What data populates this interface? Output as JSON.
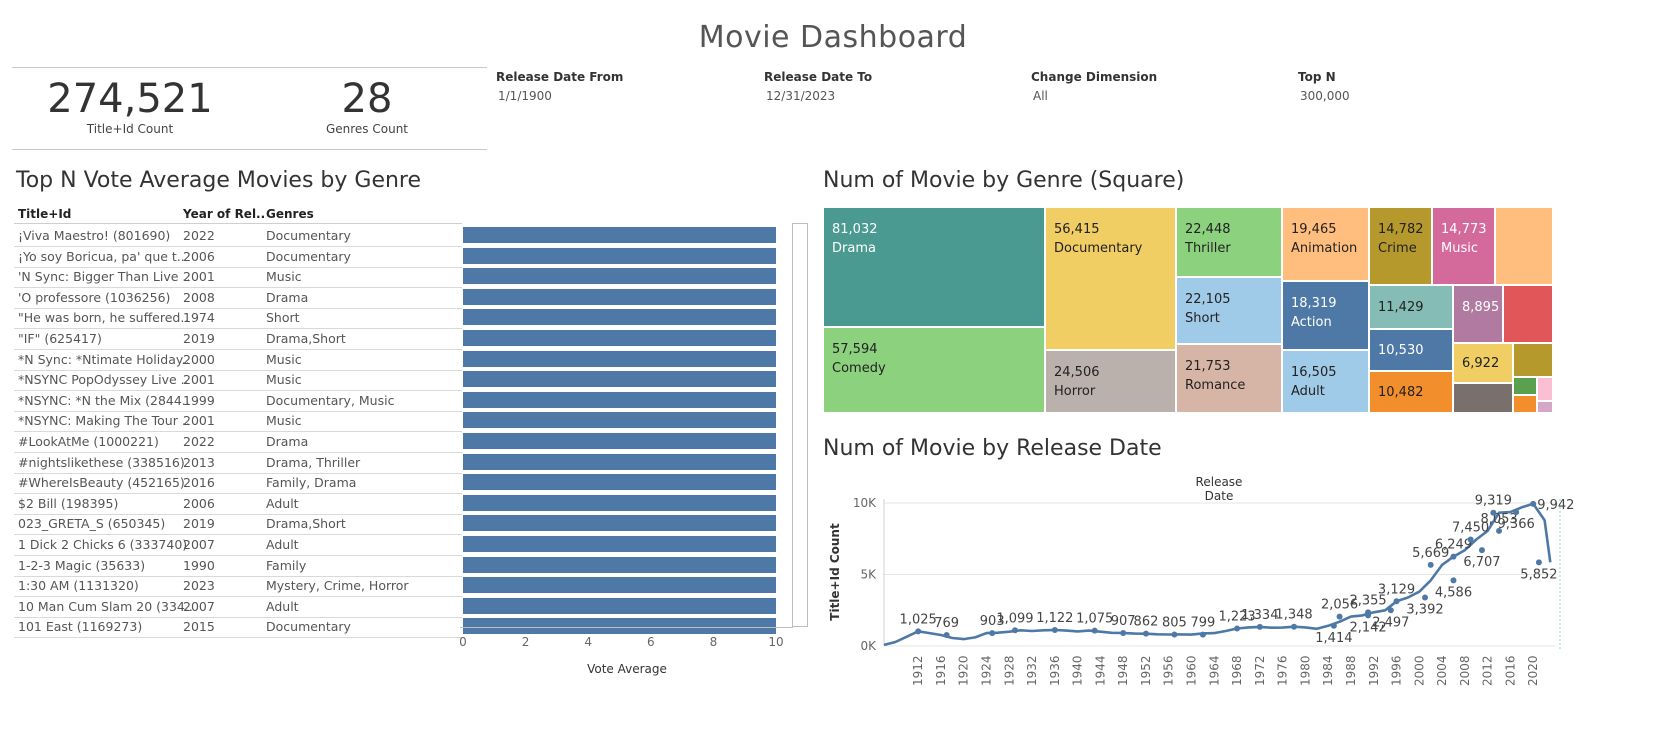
{
  "page": {
    "title": "Movie Dashboard"
  },
  "kpis": [
    {
      "value": "274,521",
      "label": "Title+Id Count"
    },
    {
      "value": "28",
      "label": "Genres Count"
    }
  ],
  "filters": [
    {
      "label": "Release Date From",
      "value": "1/1/1900"
    },
    {
      "label": "Release Date To",
      "value": "12/31/2023"
    },
    {
      "label": "Change Dimension",
      "value": "All"
    },
    {
      "label": "Top N",
      "value": "300,000"
    }
  ],
  "colors": {
    "bar": "#4e79a7",
    "line": "#4e79a7"
  },
  "chart_data": [
    {
      "type": "bar",
      "title": "Top N Vote Average Movies by Genre",
      "columns": [
        "Title+Id",
        "Year of Rel..",
        "Genres"
      ],
      "xlabel": "Vote Average",
      "xlim": [
        0,
        10
      ],
      "xticks": [
        "0",
        "2",
        "4",
        "6",
        "8",
        "10"
      ],
      "rows": [
        {
          "title": "¡Viva Maestro! (801690)",
          "year": "2022",
          "genres": "Documentary",
          "value": 10
        },
        {
          "title": "¡Yo soy Boricua, pa' que t..",
          "year": "2006",
          "genres": "Documentary",
          "value": 10
        },
        {
          "title": "'N Sync: Bigger Than Live ..",
          "year": "2001",
          "genres": "Music",
          "value": 10
        },
        {
          "title": "'O professore (1036256)",
          "year": "2008",
          "genres": "Drama",
          "value": 10
        },
        {
          "title": "\"He was born, he suffered..",
          "year": "1974",
          "genres": "Short",
          "value": 10
        },
        {
          "title": "\"IF\" (625417)",
          "year": "2019",
          "genres": "Drama,Short",
          "value": 10
        },
        {
          "title": "*N Sync: *Ntimate Holiday..",
          "year": "2000",
          "genres": "Music",
          "value": 10
        },
        {
          "title": "*NSYNC PopOdyssey Live ..",
          "year": "2001",
          "genres": "Music",
          "value": 10
        },
        {
          "title": "*NSYNC: *N the Mix (2844..",
          "year": "1999",
          "genres": "Documentary, Music",
          "value": 10
        },
        {
          "title": "*NSYNC: Making The Tour ..",
          "year": "2001",
          "genres": "Music",
          "value": 10
        },
        {
          "title": "#LookAtMe (1000221)",
          "year": "2022",
          "genres": "Drama",
          "value": 10
        },
        {
          "title": "#nightslikethese (338516)",
          "year": "2013",
          "genres": "Drama, Thriller",
          "value": 10
        },
        {
          "title": "#WhereIsBeauty (452165)",
          "year": "2016",
          "genres": "Family, Drama",
          "value": 10
        },
        {
          "title": "$2 Bill (198395)",
          "year": "2006",
          "genres": "Adult",
          "value": 10
        },
        {
          "title": "023_GRETA_S (650345)",
          "year": "2019",
          "genres": "Drama,Short",
          "value": 10
        },
        {
          "title": "1 Dick 2 Chicks 6 (333740)",
          "year": "2007",
          "genres": "Adult",
          "value": 10
        },
        {
          "title": "1-2-3 Magic (35633)",
          "year": "1990",
          "genres": "Family",
          "value": 10
        },
        {
          "title": "1:30 AM (1131320)",
          "year": "2023",
          "genres": "Mystery, Crime, Horror",
          "value": 10
        },
        {
          "title": "10 Man Cum Slam 20 (334..",
          "year": "2007",
          "genres": "Adult",
          "value": 10
        },
        {
          "title": "101 East (1169273)",
          "year": "2015",
          "genres": "Documentary",
          "value": 10
        }
      ]
    },
    {
      "type": "heatmap",
      "title": "Num of Movie by Genre (Square)",
      "items": [
        {
          "genre": "Drama",
          "value": "81,032",
          "color": "#4a9a91",
          "text": "#ffffff"
        },
        {
          "genre": "Comedy",
          "value": "57,594",
          "color": "#8cd17d",
          "text": "#222222"
        },
        {
          "genre": "Documentary",
          "value": "56,415",
          "color": "#f1ce63",
          "text": "#222222"
        },
        {
          "genre": "Horror",
          "value": "24,506",
          "color": "#bab0ac",
          "text": "#222222"
        },
        {
          "genre": "Thriller",
          "value": "22,448",
          "color": "#8cd17d",
          "text": "#222222"
        },
        {
          "genre": "Short",
          "value": "22,105",
          "color": "#a0cbe8",
          "text": "#222222"
        },
        {
          "genre": "Romance",
          "value": "21,753",
          "color": "#d7b5a6",
          "text": "#222222"
        },
        {
          "genre": "Animation",
          "value": "19,465",
          "color": "#ffbe7d",
          "text": "#222222"
        },
        {
          "genre": "Action",
          "value": "18,319",
          "color": "#4e79a7",
          "text": "#ffffff"
        },
        {
          "genre": "Adult",
          "value": "16,505",
          "color": "#a0cbe8",
          "text": "#222222"
        },
        {
          "genre": "Crime",
          "value": "14,782",
          "color": "#b6992d",
          "text": "#222222"
        },
        {
          "genre": "Music",
          "value": "14,773",
          "color": "#d4699c",
          "text": "#ffffff"
        },
        {
          "genre": "",
          "value": "",
          "color": "#ffbe7d",
          "text": "#222222"
        },
        {
          "genre": "",
          "value": "11,429",
          "color": "#86bcb6",
          "text": "#222222"
        },
        {
          "genre": "",
          "value": "8,895",
          "color": "#b07aa1",
          "text": "#ffffff"
        },
        {
          "genre": "",
          "value": "",
          "color": "#e15759",
          "text": "#222222"
        },
        {
          "genre": "",
          "value": "10,530",
          "color": "#4e79a7",
          "text": "#ffffff"
        },
        {
          "genre": "",
          "value": "6,922",
          "color": "#f1ce63",
          "text": "#222222"
        },
        {
          "genre": "",
          "value": "",
          "color": "#b6992d",
          "text": "#222222"
        },
        {
          "genre": "",
          "value": "10,482",
          "color": "#f28e2b",
          "text": "#222222"
        },
        {
          "genre": "",
          "value": "",
          "color": "#79706e",
          "text": "#222222"
        },
        {
          "genre": "",
          "value": "",
          "color": "#59a14f",
          "text": "#222222"
        },
        {
          "genre": "",
          "value": "",
          "color": "#fabfd2",
          "text": "#222222"
        },
        {
          "genre": "",
          "value": "",
          "color": "#f28e2b",
          "text": "#222222"
        },
        {
          "genre": "",
          "value": "",
          "color": "#d4a6c8",
          "text": "#222222"
        }
      ]
    },
    {
      "type": "line",
      "title": "Num of Movie by Release Date",
      "header": "Release Date",
      "ylabel": "Title+Id Count",
      "ylim": [
        0,
        10000
      ],
      "yticks": [
        {
          "v": 0,
          "label": "0K"
        },
        {
          "v": 5000,
          "label": "5K"
        },
        {
          "v": 10000,
          "label": "10K"
        }
      ],
      "xlim": [
        1906,
        2024
      ],
      "xticks": [
        "1912",
        "1916",
        "1920",
        "1924",
        "1928",
        "1932",
        "1936",
        "1940",
        "1944",
        "1948",
        "1952",
        "1956",
        "1960",
        "1964",
        "1968",
        "1972",
        "1976",
        "1980",
        "1984",
        "1988",
        "1992",
        "1996",
        "2000",
        "2004",
        "2008",
        "2012",
        "2016",
        "2020"
      ],
      "x": [
        1906,
        1908,
        1910,
        1912,
        1914,
        1916,
        1918,
        1920,
        1922,
        1924,
        1926,
        1928,
        1930,
        1932,
        1934,
        1936,
        1938,
        1940,
        1942,
        1944,
        1946,
        1948,
        1950,
        1952,
        1954,
        1956,
        1958,
        1960,
        1962,
        1964,
        1966,
        1968,
        1970,
        1972,
        1974,
        1976,
        1978,
        1980,
        1982,
        1984,
        1986,
        1988,
        1990,
        1992,
        1994,
        1996,
        1998,
        2000,
        2002,
        2004,
        2006,
        2008,
        2010,
        2012,
        2014,
        2016,
        2018,
        2020,
        2022,
        2023
      ],
      "values": [
        80,
        280,
        650,
        1025,
        900,
        769,
        560,
        480,
        600,
        903,
        930,
        1000,
        1099,
        1050,
        1100,
        1122,
        1080,
        1020,
        1075,
        1000,
        920,
        907,
        870,
        862,
        820,
        805,
        810,
        799,
        880,
        900,
        1050,
        1223,
        1300,
        1334,
        1280,
        1290,
        1348,
        1300,
        1200,
        1414,
        1700,
        2056,
        2142,
        2355,
        2497,
        3129,
        3392,
        3800,
        4586,
        5669,
        6249,
        6707,
        7450,
        8053,
        9319,
        9366,
        9700,
        9942,
        8800,
        5852
      ],
      "data_labels": [
        {
          "text": "1,025",
          "x": 1912,
          "y": 1025,
          "pos": "above"
        },
        {
          "text": "769",
          "x": 1917,
          "y": 769,
          "pos": "above"
        },
        {
          "text": "903",
          "x": 1925,
          "y": 903,
          "pos": "above"
        },
        {
          "text": "1,099",
          "x": 1929,
          "y": 1099,
          "pos": "above"
        },
        {
          "text": "1,122",
          "x": 1936,
          "y": 1122,
          "pos": "above"
        },
        {
          "text": "1,075",
          "x": 1943,
          "y": 1075,
          "pos": "above"
        },
        {
          "text": "907",
          "x": 1948,
          "y": 907,
          "pos": "above"
        },
        {
          "text": "862",
          "x": 1952,
          "y": 862,
          "pos": "above"
        },
        {
          "text": "805",
          "x": 1957,
          "y": 805,
          "pos": "above"
        },
        {
          "text": "799",
          "x": 1962,
          "y": 799,
          "pos": "above"
        },
        {
          "text": "1,223",
          "x": 1968,
          "y": 1223,
          "pos": "above"
        },
        {
          "text": "1,334",
          "x": 1972,
          "y": 1334,
          "pos": "above"
        },
        {
          "text": "1,348",
          "x": 1978,
          "y": 1348,
          "pos": "above"
        },
        {
          "text": "1,414",
          "x": 1985,
          "y": 1414,
          "pos": "below"
        },
        {
          "text": "2,056",
          "x": 1986,
          "y": 2056,
          "pos": "above"
        },
        {
          "text": "2,142",
          "x": 1991,
          "y": 2142,
          "pos": "below"
        },
        {
          "text": "2,355",
          "x": 1991,
          "y": 2355,
          "pos": "above"
        },
        {
          "text": "2,497",
          "x": 1995,
          "y": 2497,
          "pos": "below"
        },
        {
          "text": "3,129",
          "x": 1996,
          "y": 3129,
          "pos": "above"
        },
        {
          "text": "3,392",
          "x": 2001,
          "y": 3392,
          "pos": "below"
        },
        {
          "text": "4,586",
          "x": 2006,
          "y": 4586,
          "pos": "below"
        },
        {
          "text": "5,669",
          "x": 2002,
          "y": 5669,
          "pos": "above"
        },
        {
          "text": "6,249",
          "x": 2006,
          "y": 6249,
          "pos": "above"
        },
        {
          "text": "6,707",
          "x": 2011,
          "y": 6707,
          "pos": "below"
        },
        {
          "text": "7,450",
          "x": 2009,
          "y": 7450,
          "pos": "above"
        },
        {
          "text": "8,053",
          "x": 2014,
          "y": 8053,
          "pos": "above"
        },
        {
          "text": "9,319",
          "x": 2013,
          "y": 9319,
          "pos": "above"
        },
        {
          "text": "9,366",
          "x": 2017,
          "y": 9366,
          "pos": "below"
        },
        {
          "text": "9,942",
          "x": 2020,
          "y": 9942,
          "pos": "right"
        },
        {
          "text": "5,852",
          "x": 2021,
          "y": 5852,
          "pos": "below"
        }
      ]
    }
  ]
}
